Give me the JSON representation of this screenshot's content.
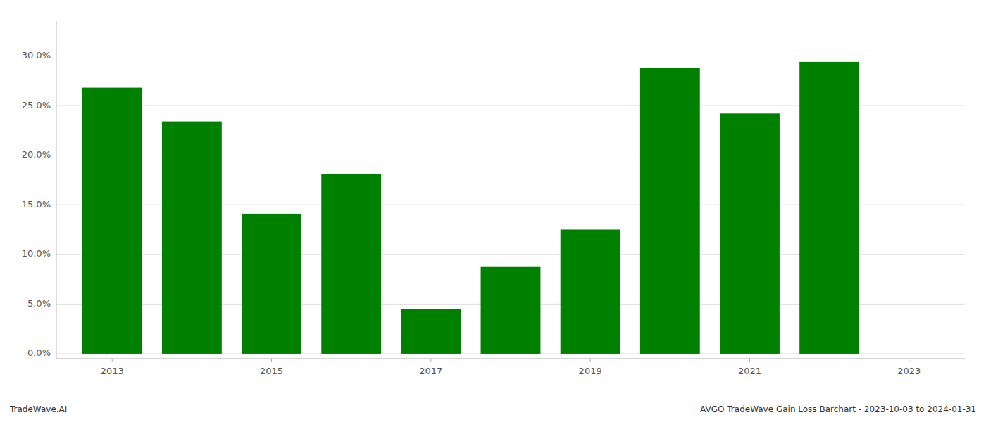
{
  "chart_data": {
    "type": "bar",
    "title": "AVGO TradeWave Gain Loss Barchart - 2023-10-03 to 2024-01-31",
    "annotations": [
      "TradeWave.AI"
    ],
    "x": [
      2013,
      2014,
      2015,
      2016,
      2017,
      2018,
      2019,
      2020,
      2021,
      2022
    ],
    "values": [
      0.268,
      0.234,
      0.141,
      0.181,
      0.045,
      0.088,
      0.125,
      0.288,
      0.242,
      0.294
    ],
    "color": "#008000",
    "xlim": [
      2012.3,
      2023.7
    ],
    "xticks": [
      2013,
      2015,
      2017,
      2019,
      2021,
      2023
    ],
    "ylim": [
      -0.005,
      0.335
    ],
    "yticks": [
      {
        "value": 0.0,
        "label": "0.0%"
      },
      {
        "value": 0.05,
        "label": "5.0%"
      },
      {
        "value": 0.1,
        "label": "10.0%"
      },
      {
        "value": 0.15,
        "label": "15.0%"
      },
      {
        "value": 0.2,
        "label": "20.0%"
      },
      {
        "value": 0.25,
        "label": "25.0%"
      },
      {
        "value": 0.3,
        "label": "30.0%"
      }
    ],
    "grid": true
  }
}
